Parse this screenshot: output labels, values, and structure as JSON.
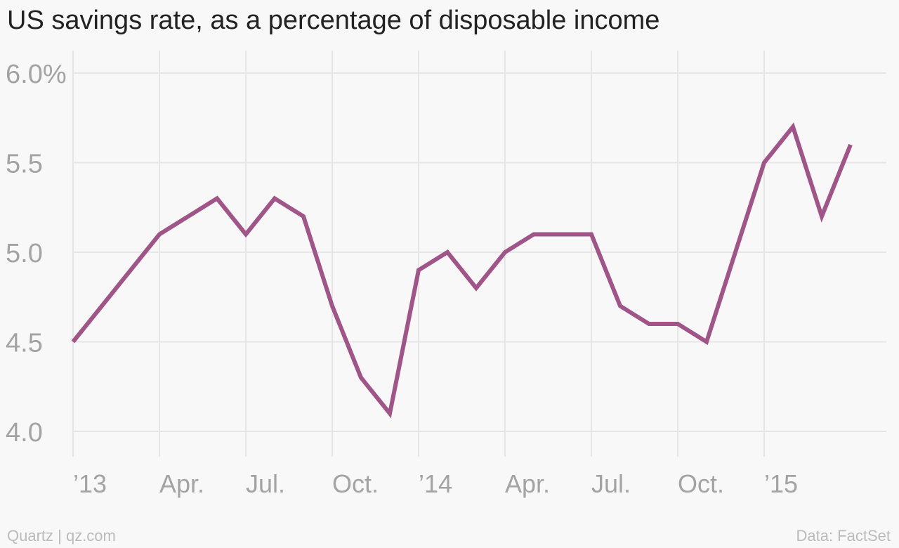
{
  "chart_data": {
    "type": "line",
    "title": "US savings rate, as a percentage of disposable income",
    "xlabel": "",
    "ylabel": "",
    "ylim": [
      4.0,
      6.0
    ],
    "yticks": [
      4.0,
      4.5,
      5.0,
      5.5,
      6.0
    ],
    "ytick_labels": [
      "4.0",
      "4.5",
      "5.0",
      "5.5",
      "6.0%"
    ],
    "xticks": [
      {
        "x": "2013-01",
        "label": "’13"
      },
      {
        "x": "2013-04",
        "label": "Apr."
      },
      {
        "x": "2013-07",
        "label": "Jul."
      },
      {
        "x": "2013-10",
        "label": "Oct."
      },
      {
        "x": "2014-01",
        "label": "’14"
      },
      {
        "x": "2014-04",
        "label": "Apr."
      },
      {
        "x": "2014-07",
        "label": "Jul."
      },
      {
        "x": "2014-10",
        "label": "Oct."
      },
      {
        "x": "2015-01",
        "label": "’15"
      }
    ],
    "grid": true,
    "series": [
      {
        "color": "#a05487",
        "x": [
          "2013-01",
          "2013-02",
          "2013-03",
          "2013-04",
          "2013-05",
          "2013-06",
          "2013-07",
          "2013-08",
          "2013-09",
          "2013-10",
          "2013-11",
          "2013-12",
          "2014-01",
          "2014-02",
          "2014-03",
          "2014-04",
          "2014-05",
          "2014-06",
          "2014-07",
          "2014-08",
          "2014-09",
          "2014-10",
          "2014-11",
          "2014-12",
          "2015-01",
          "2015-02",
          "2015-03",
          "2015-04"
        ],
        "values": [
          4.5,
          4.7,
          4.9,
          5.1,
          5.2,
          5.3,
          5.1,
          5.3,
          5.2,
          4.7,
          4.3,
          4.1,
          4.9,
          5.0,
          4.8,
          5.0,
          5.1,
          5.1,
          5.1,
          4.7,
          4.6,
          4.6,
          4.5,
          5.0,
          5.5,
          5.7,
          5.2,
          5.6
        ]
      }
    ]
  },
  "footer": {
    "credit_left": "Quartz | qz.com",
    "credit_right": "Data: FactSet"
  }
}
